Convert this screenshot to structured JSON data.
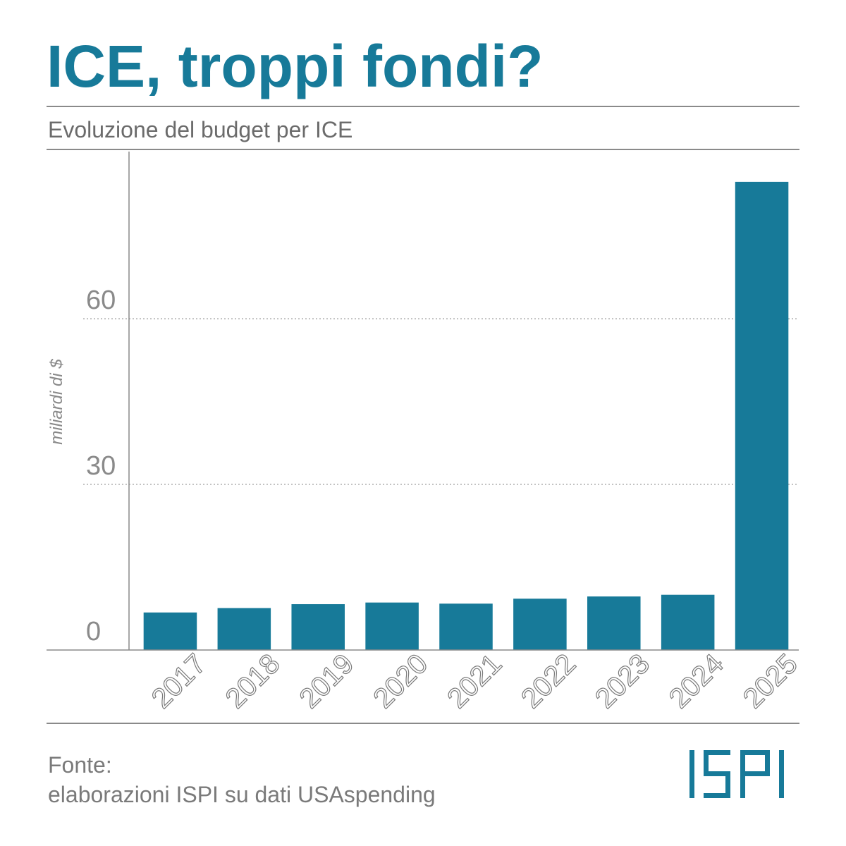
{
  "title": "ICE, troppi fondi?",
  "subtitle": "Evoluzione del budget per ICE",
  "source": {
    "label": "Fonte:",
    "text": "elaborazioni ISPI su dati USAspending"
  },
  "logo": "ISPI",
  "colors": {
    "accent": "#177a99",
    "bar": "#177a99",
    "text": "#6e6e6e"
  },
  "chart_data": {
    "type": "bar",
    "categories": [
      "2017",
      "2018",
      "2019",
      "2020",
      "2021",
      "2022",
      "2023",
      "2024",
      "2025"
    ],
    "values": [
      6.8,
      7.6,
      8.3,
      8.6,
      8.4,
      9.3,
      9.7,
      10.0,
      84.8
    ],
    "title": "Evoluzione del budget per ICE",
    "xlabel": "",
    "ylabel": "miliardi di  $",
    "ylim": [
      0,
      89
    ],
    "yticks": [
      0,
      30,
      60
    ],
    "grid": true,
    "grid_style": "dotted horizontal"
  }
}
